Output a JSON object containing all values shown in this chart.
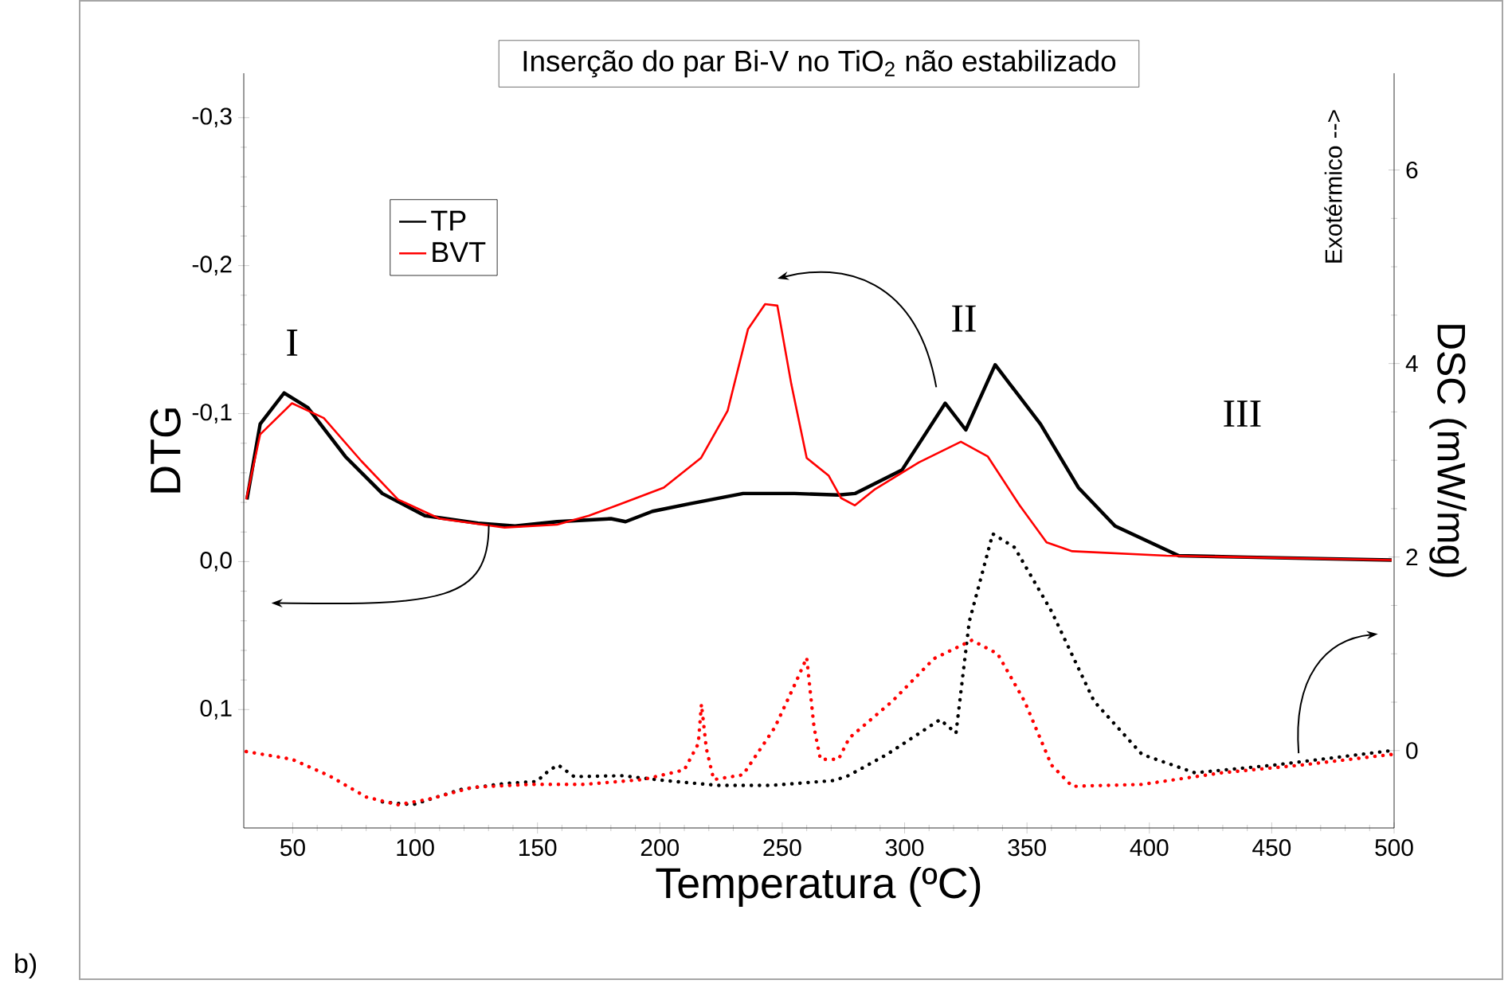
{
  "chart_data": {
    "type": "line",
    "title": "Inserção do par Bi-V no TiO$_{2}$ não estabilizado",
    "xlabel": "Temperatura (ºC)",
    "ylabel": "DTG",
    "y2label": "DSC (mW/mg)",
    "xlim": [
      30,
      500
    ],
    "xticks": [
      50,
      100,
      150,
      200,
      250,
      300,
      350,
      400,
      450,
      500
    ],
    "ylim": [
      0.18,
      -0.33
    ],
    "yticks": [
      {
        "value": -0.3,
        "label": "-0,3"
      },
      {
        "value": -0.2,
        "label": "-0,2"
      },
      {
        "value": -0.1,
        "label": "-0,1"
      },
      {
        "value": 0.0,
        "label": "0,0"
      },
      {
        "value": 0.1,
        "label": "0,1"
      }
    ],
    "y2lim": [
      -0.8,
      7.0
    ],
    "y2ticks": [
      0,
      2,
      4,
      6
    ],
    "legend": "top left",
    "series": [
      {
        "name": "TP",
        "color": "#000000",
        "line_style": "solid",
        "x": [
          31.3,
          36.7,
          46.5,
          56.2,
          71.5,
          86.6,
          104,
          125.7,
          140.8,
          158,
          180,
          186,
          197,
          212,
          234,
          255,
          273,
          279.7,
          299,
          316.6,
          325,
          337,
          355.5,
          371,
          386,
          412,
          440,
          499
        ],
        "values": [
          -0.042,
          -0.093,
          -0.114,
          -0.104,
          -0.071,
          -0.046,
          -0.031,
          -0.026,
          -0.024,
          -0.027,
          -0.029,
          -0.027,
          -0.034,
          -0.039,
          -0.046,
          -0.046,
          -0.045,
          -0.046,
          -0.062,
          -0.107,
          -0.089,
          -0.133,
          -0.093,
          -0.05,
          -0.024,
          -0.004,
          -0.003,
          -0.001
        ]
      },
      {
        "name": "BVT",
        "color": "#ff0000",
        "line_style": "solid",
        "x": [
          31,
          36.7,
          49.7,
          62.7,
          78,
          93,
          110,
          136.6,
          158,
          171,
          184,
          201.6,
          216.8,
          227.7,
          236,
          243,
          248,
          253.7,
          260,
          269,
          274,
          279.7,
          288,
          305.8,
          323,
          334,
          347,
          358,
          368.5,
          407,
          499
        ],
        "values": [
          -0.042,
          -0.086,
          -0.107,
          -0.097,
          -0.068,
          -0.042,
          -0.029,
          -0.023,
          -0.025,
          -0.031,
          -0.039,
          -0.05,
          -0.07,
          -0.102,
          -0.157,
          -0.174,
          -0.173,
          -0.12,
          -0.07,
          -0.058,
          -0.043,
          -0.038,
          -0.049,
          -0.067,
          -0.081,
          -0.071,
          -0.038,
          -0.013,
          -0.007,
          -0.004,
          -0.001
        ]
      },
      {
        "color": "#000000",
        "line_style": "dotted",
        "axis": "y2",
        "x": [
          86.6,
          99,
          119,
          136.6,
          149.6,
          155,
          158.5,
          165,
          184.7,
          202,
          223.8,
          245.5,
          271,
          277,
          292.8,
          314.5,
          321,
          326.4,
          336,
          344.9,
          360,
          377.4,
          397,
          418.6,
          451,
          499
        ],
        "values": [
          -0.53,
          -0.56,
          -0.4,
          -0.34,
          -0.32,
          -0.2,
          -0.15,
          -0.27,
          -0.26,
          -0.31,
          -0.36,
          -0.36,
          -0.31,
          -0.26,
          -0.04,
          0.32,
          0.18,
          1.33,
          2.24,
          2.1,
          1.44,
          0.51,
          -0.04,
          -0.23,
          -0.15,
          0.0
        ]
      },
      {
        "color": "#ff0000",
        "line_style": "dotted",
        "axis": "y2",
        "x": [
          31,
          49.7,
          64.9,
          80,
          93,
          106,
          123.5,
          147,
          169,
          193,
          210,
          215.7,
          217,
          219,
          222,
          234,
          247,
          256,
          260,
          263,
          265.6,
          273,
          277.4,
          295,
          312,
          327.5,
          338,
          349,
          360,
          368.5,
          397,
          429.6,
          462,
          499
        ],
        "values": [
          -0.01,
          -0.09,
          -0.26,
          -0.48,
          -0.56,
          -0.5,
          -0.38,
          -0.35,
          -0.35,
          -0.3,
          -0.2,
          0.07,
          0.48,
          0.02,
          -0.3,
          -0.25,
          0.24,
          0.73,
          0.96,
          0.24,
          -0.09,
          -0.09,
          0.13,
          0.51,
          0.95,
          1.14,
          1.0,
          0.51,
          -0.15,
          -0.37,
          -0.35,
          -0.23,
          -0.15,
          -0.04
        ]
      }
    ],
    "annotations": [
      "Exotérmico -->",
      "b)",
      "I",
      "II",
      "III"
    ]
  }
}
